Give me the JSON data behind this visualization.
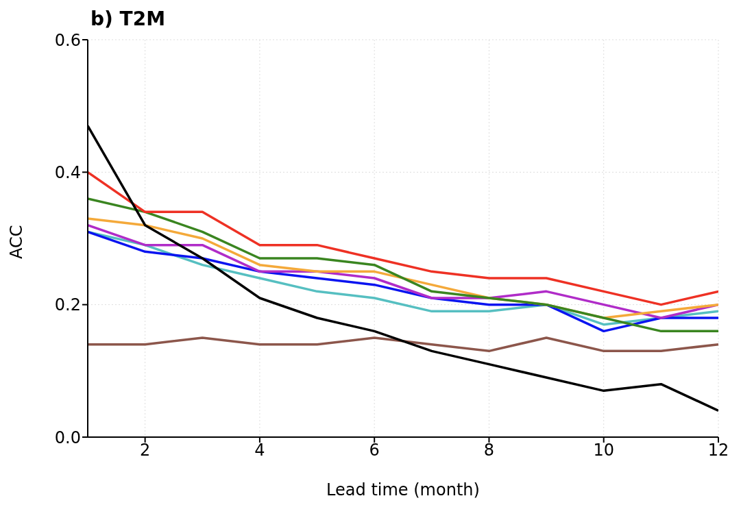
{
  "chart_data": {
    "type": "line",
    "title": "b) T2M",
    "xlabel": "Lead time (month)",
    "ylabel": "ACC",
    "x": [
      1,
      2,
      3,
      4,
      5,
      6,
      7,
      8,
      9,
      10,
      11,
      12
    ],
    "xlim": [
      1,
      12
    ],
    "xticks": [
      2,
      4,
      6,
      8,
      10,
      12
    ],
    "ylim": [
      0,
      0.6
    ],
    "yticks": [
      {
        "value": 0,
        "label": "0.0"
      },
      {
        "value": 0.2,
        "label": "0.2"
      },
      {
        "value": 0.4,
        "label": "0.4"
      },
      {
        "value": 0.6,
        "label": "0.6"
      }
    ],
    "grid": true,
    "marker": "none",
    "line_style": "solid",
    "series": [
      {
        "color": "#8c564b",
        "values": [
          0.14,
          0.14,
          0.15,
          0.14,
          0.14,
          0.15,
          0.14,
          0.13,
          0.15,
          0.13,
          0.13,
          0.14
        ]
      },
      {
        "color": "#56bfc1",
        "values": [
          0.31,
          0.29,
          0.26,
          0.24,
          0.22,
          0.21,
          0.19,
          0.19,
          0.2,
          0.17,
          0.18,
          0.19
        ]
      },
      {
        "color": "#0a14f0",
        "values": [
          0.31,
          0.28,
          0.27,
          0.25,
          0.24,
          0.23,
          0.21,
          0.2,
          0.2,
          0.16,
          0.18,
          0.18
        ]
      },
      {
        "color": "#b02cc8",
        "values": [
          0.32,
          0.29,
          0.29,
          0.25,
          0.25,
          0.24,
          0.21,
          0.21,
          0.22,
          0.2,
          0.18,
          0.2
        ]
      },
      {
        "color": "#f4a93a",
        "values": [
          0.33,
          0.32,
          0.3,
          0.26,
          0.25,
          0.25,
          0.23,
          0.21,
          0.2,
          0.18,
          0.19,
          0.2
        ]
      },
      {
        "color": "#3a8520",
        "values": [
          0.36,
          0.34,
          0.31,
          0.27,
          0.27,
          0.26,
          0.22,
          0.21,
          0.2,
          0.18,
          0.16,
          0.16
        ]
      },
      {
        "color": "#ee3124",
        "values": [
          0.4,
          0.34,
          0.34,
          0.29,
          0.29,
          0.27,
          0.25,
          0.24,
          0.24,
          0.22,
          0.2,
          0.22
        ]
      },
      {
        "color": "#000000",
        "values": [
          0.47,
          0.32,
          0.27,
          0.21,
          0.18,
          0.16,
          0.13,
          0.11,
          0.09,
          0.07,
          0.08,
          0.04
        ]
      }
    ]
  }
}
